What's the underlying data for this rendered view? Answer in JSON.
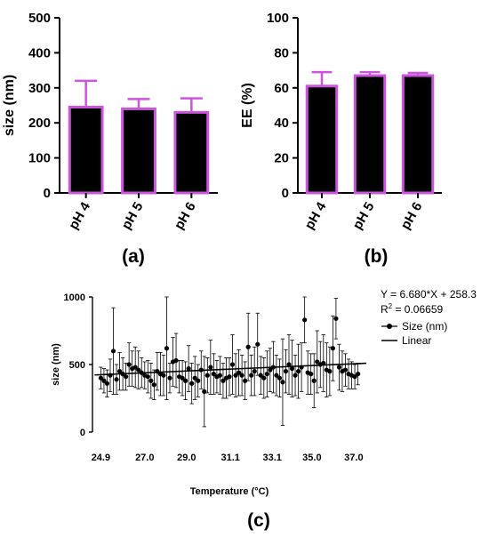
{
  "panels": {
    "a": "(a)",
    "b": "(b)",
    "c": "(c)"
  },
  "chart_data": [
    {
      "type": "bar",
      "panel": "(a)",
      "categories": [
        "pH 4",
        "pH 5",
        "pH 6"
      ],
      "values": [
        245,
        240,
        230
      ],
      "errors": [
        75,
        28,
        40
      ],
      "ylabel": "size (nm)",
      "ylim": [
        0,
        500
      ],
      "yticks": [
        "0",
        "100",
        "200",
        "300",
        "400",
        "500"
      ],
      "colors": {
        "fill": "#000000",
        "edge": "#cc55dd"
      }
    },
    {
      "type": "bar",
      "panel": "(b)",
      "categories": [
        "pH 4",
        "pH 5",
        "pH 6"
      ],
      "values": [
        61,
        67,
        67
      ],
      "errors": [
        8,
        2,
        1.5
      ],
      "ylabel": "EE (%)",
      "ylim": [
        0,
        100
      ],
      "yticks": [
        "0",
        "20",
        "40",
        "60",
        "80",
        "100"
      ],
      "colors": {
        "fill": "#000000",
        "edge": "#cc55dd"
      }
    },
    {
      "type": "scatter",
      "panel": "(c)",
      "xlabel": "Temperature (°C)",
      "ylabel": "size (nm)",
      "xlim": [
        24.5,
        37.6
      ],
      "ylim": [
        0,
        1000
      ],
      "xticks": [
        "24.9",
        "27.0",
        "29.0",
        "31.1",
        "33.1",
        "35.0",
        "37.0"
      ],
      "yticks": [
        "0",
        "500",
        "1000"
      ],
      "equation": "Y = 6.680*X + 258.3",
      "r2_prefix": "R",
      "r2_sup": "2",
      "r2_value": " = 0.06659",
      "fit": {
        "slope": 6.68,
        "intercept": 258.3
      },
      "series": [
        {
          "name": "Size (nm)",
          "x": [
            24.9,
            25.05,
            25.2,
            25.35,
            25.5,
            25.65,
            25.8,
            25.95,
            26.1,
            26.25,
            26.4,
            26.55,
            26.7,
            26.85,
            27.0,
            27.15,
            27.3,
            27.45,
            27.6,
            27.75,
            27.9,
            28.05,
            28.2,
            28.35,
            28.5,
            28.65,
            28.8,
            28.95,
            29.1,
            29.25,
            29.4,
            29.55,
            29.7,
            29.85,
            30.0,
            30.15,
            30.3,
            30.45,
            30.6,
            30.75,
            30.9,
            31.05,
            31.2,
            31.35,
            31.5,
            31.65,
            31.8,
            31.95,
            32.1,
            32.25,
            32.4,
            32.55,
            32.7,
            32.85,
            33.0,
            33.15,
            33.3,
            33.45,
            33.6,
            33.75,
            33.9,
            34.05,
            34.2,
            34.35,
            34.5,
            34.65,
            34.8,
            34.95,
            35.1,
            35.25,
            35.4,
            35.55,
            35.7,
            35.85,
            36.0,
            36.15,
            36.3,
            36.45,
            36.6,
            36.75,
            36.9,
            37.05,
            37.2
          ],
          "y": [
            400,
            380,
            360,
            420,
            600,
            390,
            450,
            430,
            410,
            500,
            470,
            480,
            460,
            440,
            420,
            410,
            380,
            350,
            450,
            430,
            420,
            620,
            400,
            520,
            530,
            410,
            400,
            380,
            470,
            360,
            400,
            380,
            460,
            300,
            420,
            480,
            430,
            410,
            420,
            380,
            400,
            410,
            500,
            420,
            440,
            420,
            380,
            630,
            420,
            450,
            650,
            420,
            400,
            430,
            460,
            480,
            420,
            400,
            370,
            450,
            500,
            470,
            420,
            450,
            480,
            830,
            440,
            430,
            380,
            520,
            500,
            510,
            460,
            450,
            620,
            840,
            480,
            450,
            460,
            430,
            420,
            410,
            430
          ],
          "e": [
            80,
            90,
            100,
            120,
            320,
            110,
            140,
            120,
            100,
            160,
            130,
            150,
            140,
            110,
            100,
            120,
            130,
            110,
            140,
            160,
            150,
            380,
            110,
            180,
            200,
            120,
            130,
            140,
            170,
            150,
            160,
            120,
            140,
            260,
            130,
            200,
            150,
            120,
            140,
            130,
            150,
            140,
            220,
            160,
            170,
            150,
            140,
            250,
            150,
            180,
            230,
            140,
            150,
            170,
            160,
            190,
            150,
            140,
            320,
            160,
            220,
            210,
            150,
            200,
            180,
            170,
            160,
            150,
            200,
            230,
            170,
            210,
            200,
            180,
            240,
            150,
            170,
            150,
            120,
            110,
            100,
            90,
            80
          ]
        },
        {
          "name": "Linear"
        }
      ]
    }
  ]
}
